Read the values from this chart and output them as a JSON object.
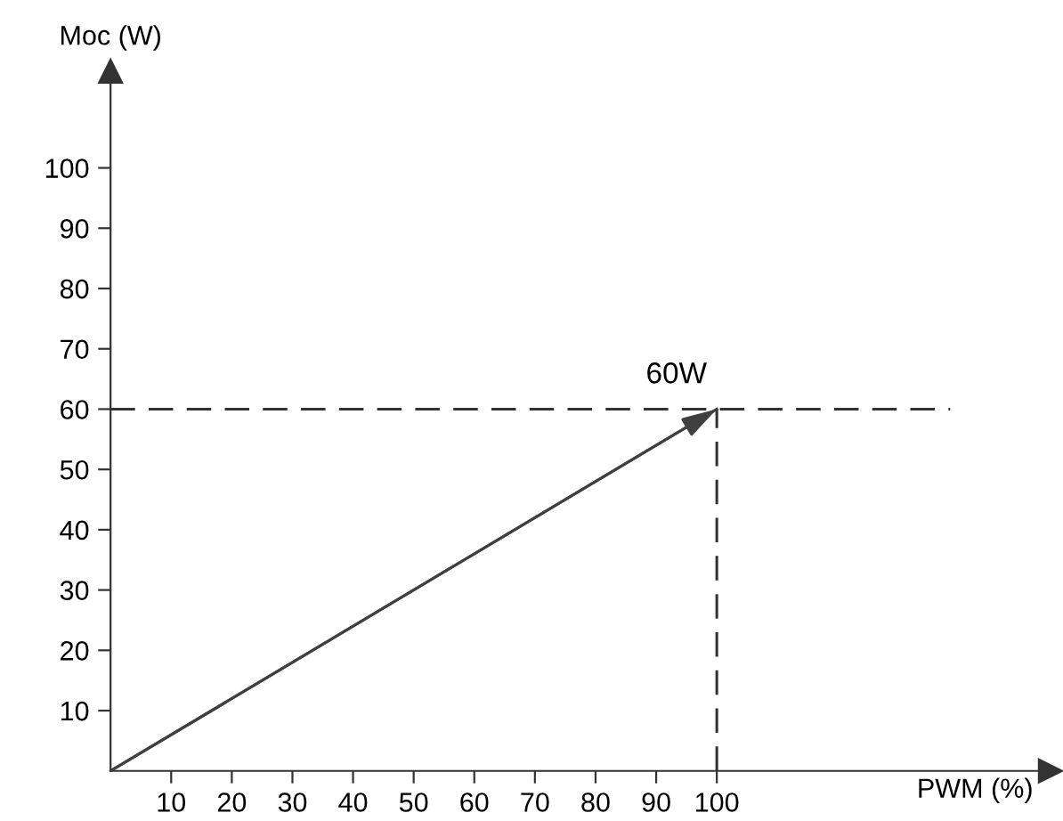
{
  "chart_data": {
    "type": "line",
    "xlabel": "PWM (%)",
    "ylabel": "Moc (W)",
    "x": [
      0,
      100
    ],
    "series": [
      {
        "color": "#404040",
        "values": [
          0,
          60
        ]
      }
    ],
    "xlim": [
      0,
      155
    ],
    "ylim": [
      0,
      116
    ],
    "xticks": [
      10,
      20,
      30,
      40,
      50,
      60,
      70,
      80,
      90,
      100
    ],
    "yticks": [
      10,
      20,
      30,
      40,
      50,
      60,
      70,
      80,
      90,
      100
    ],
    "ref_lines": [
      {
        "axis": "y",
        "value": 60,
        "color": "#333333",
        "line_style": "dashed"
      },
      {
        "axis": "x",
        "value": 100,
        "color": "#333333",
        "line_style": "dashed"
      }
    ],
    "annotations": [
      {
        "text": "60W",
        "x": 100,
        "y": 60
      }
    ],
    "marker": "none",
    "line_style": "solid",
    "grid": false,
    "legend": false
  }
}
